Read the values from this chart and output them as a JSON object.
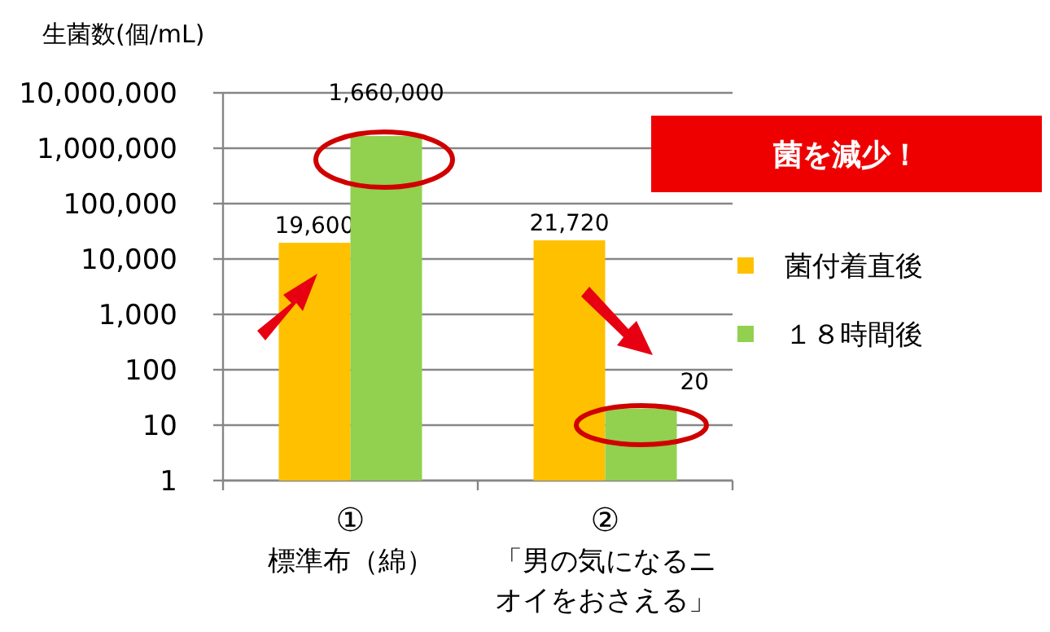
{
  "chart_data": {
    "type": "bar",
    "ylabel": "生菌数(個/mL)",
    "categories": [
      "①標準布（綿）",
      "②「男の気になるニオイをおさえる」"
    ],
    "series": [
      {
        "name": "菌付着直後",
        "color": "#ffc000",
        "values": [
          19600,
          21720
        ],
        "value_labels": [
          "19,600",
          "21,720"
        ]
      },
      {
        "name": "１８時間後",
        "color": "#92d050",
        "values": [
          1660000,
          20
        ],
        "value_labels": [
          "1,660,000",
          "20"
        ]
      }
    ],
    "log": true,
    "ylim": [
      1,
      10000000
    ],
    "yticks": [
      {
        "value": 1,
        "label": "1"
      },
      {
        "value": 10,
        "label": "10"
      },
      {
        "value": 100,
        "label": "100"
      },
      {
        "value": 1000,
        "label": "1,000"
      },
      {
        "value": 10000,
        "label": "10,000"
      },
      {
        "value": 100000,
        "label": "100,000"
      },
      {
        "value": 1000000,
        "label": "1,000,000"
      },
      {
        "value": 10000000,
        "label": "10,000,000"
      }
    ],
    "grid": "y",
    "legend": "right",
    "annotations": [
      "菌を減少！"
    ]
  }
}
